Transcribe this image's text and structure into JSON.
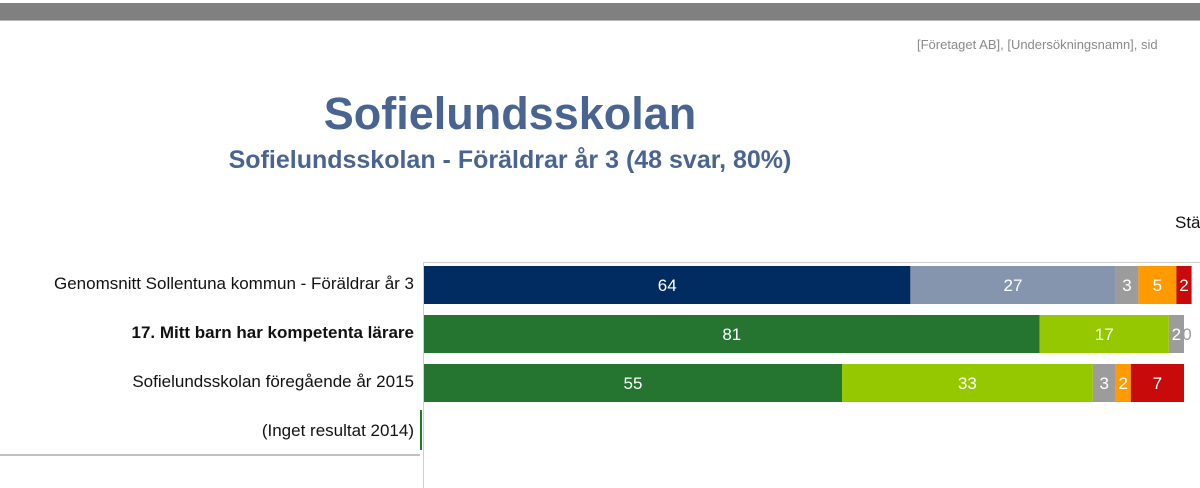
{
  "header": {
    "note": "[Företaget AB], [Undersökningsnamn], sid",
    "title": "Sofielundsskolan",
    "subtitle": "Sofielundsskolan - Föräldrar år 3 (48 svar, 80%)",
    "corner_text": "Stä"
  },
  "chart_data": {
    "type": "bar",
    "orientation": "horizontal",
    "stacked": true,
    "categories": [
      "Genomsnitt Sollentuna kommun - Föräldrar år 3",
      "17. Mitt barn har kompetenta lärare",
      "Sofielundsskolan föregående år 2015",
      "(Inget resultat 2014)"
    ],
    "bold_categories": [
      1
    ],
    "xlim": [
      0,
      100
    ],
    "rows": [
      {
        "segments": [
          {
            "value": 64,
            "color": "#002c62",
            "label": "64",
            "text_color": "#ffffff"
          },
          {
            "value": 27,
            "color": "#8695ae",
            "label": "27",
            "text_color": "#ffffff"
          },
          {
            "value": 3,
            "color": "#9c9c9c",
            "label": "3",
            "text_color": "#ffffff"
          },
          {
            "value": 5,
            "color": "#ff9a00",
            "label": "5",
            "text_color": "#ffffff"
          },
          {
            "value": 2,
            "color": "#c80a0a",
            "label": "2",
            "text_color": "#ffffff"
          }
        ]
      },
      {
        "segments": [
          {
            "value": 81,
            "color": "#25742f",
            "label": "81",
            "text_color": "#ffffff"
          },
          {
            "value": 17,
            "color": "#96c800",
            "label": "17",
            "text_color": "#ffffff"
          },
          {
            "value": 2,
            "color": "#9c9c9c",
            "label": "2",
            "text_color": "#ffffff"
          },
          {
            "value": 0,
            "color": "#ff9a00",
            "label": "0",
            "text_color": "#ffffff"
          }
        ]
      },
      {
        "segments": [
          {
            "value": 55,
            "color": "#25742f",
            "label": "55",
            "text_color": "#ffffff"
          },
          {
            "value": 33,
            "color": "#96c800",
            "label": "33",
            "text_color": "#ffffff"
          },
          {
            "value": 3,
            "color": "#9c9c9c",
            "label": "3",
            "text_color": "#ffffff"
          },
          {
            "value": 2,
            "color": "#ff9a00",
            "label": "2",
            "text_color": "#ffffff"
          },
          {
            "value": 7,
            "color": "#c80a0a",
            "label": "7",
            "text_color": "#ffffff"
          }
        ]
      },
      {
        "segments": []
      }
    ]
  }
}
